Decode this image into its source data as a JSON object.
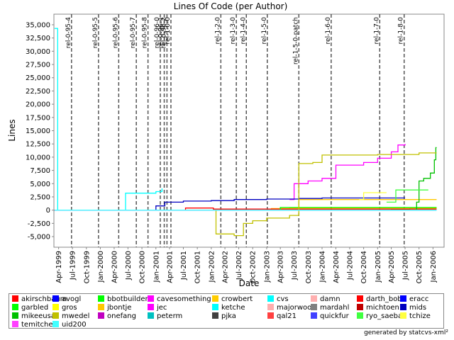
{
  "chart_data": {
    "type": "line",
    "title": "Lines Of Code (per Author)",
    "xlabel": "Date",
    "ylabel": "Lines",
    "ylim": [
      -7000,
      37000
    ],
    "xlim": [
      "1999-03-01",
      "2006-03-15"
    ],
    "yticks": [
      -5000,
      -2500,
      0,
      2500,
      5000,
      7500,
      10000,
      12500,
      15000,
      17500,
      20000,
      22500,
      25000,
      27500,
      30000,
      32500,
      35000
    ],
    "ytick_labels": [
      "-5,000",
      "-2,500",
      "0",
      "2,500",
      "5,000",
      "7,500",
      "10,000",
      "12,500",
      "15,000",
      "17,500",
      "20,000",
      "22,500",
      "25,000",
      "27,500",
      "30,000",
      "32,500",
      "35,000"
    ],
    "xticks": [
      {
        "label": "Apr-1999",
        "date": "1999-04-01"
      },
      {
        "label": "Jul-1999",
        "date": "1999-07-01"
      },
      {
        "label": "Oct-1999",
        "date": "1999-10-01"
      },
      {
        "label": "Jan-2000",
        "date": "2000-01-01"
      },
      {
        "label": "Apr-2000",
        "date": "2000-04-01"
      },
      {
        "label": "Jul-2000",
        "date": "2000-07-01"
      },
      {
        "label": "Oct-2000",
        "date": "2000-10-01"
      },
      {
        "label": "Jan-2001",
        "date": "2001-01-01"
      },
      {
        "label": "Apr-2001",
        "date": "2001-04-01"
      },
      {
        "label": "Jul-2001",
        "date": "2001-07-01"
      },
      {
        "label": "Oct-2001",
        "date": "2001-10-01"
      },
      {
        "label": "Jan-2002",
        "date": "2002-01-01"
      },
      {
        "label": "Apr-2002",
        "date": "2002-04-01"
      },
      {
        "label": "Jul-2002",
        "date": "2002-07-01"
      },
      {
        "label": "Oct-2002",
        "date": "2002-10-01"
      },
      {
        "label": "Jan-2003",
        "date": "2003-01-01"
      },
      {
        "label": "Apr-2003",
        "date": "2003-04-01"
      },
      {
        "label": "Jul-2003",
        "date": "2003-07-01"
      },
      {
        "label": "Oct-2003",
        "date": "2003-10-01"
      },
      {
        "label": "Jan-2004",
        "date": "2004-01-01"
      },
      {
        "label": "Apr-2004",
        "date": "2004-04-01"
      },
      {
        "label": "Jul-2004",
        "date": "2004-07-01"
      },
      {
        "label": "Oct-2004",
        "date": "2004-10-01"
      },
      {
        "label": "Jan-2005",
        "date": "2005-01-01"
      },
      {
        "label": "Apr-2005",
        "date": "2005-04-01"
      },
      {
        "label": "Jul-2005",
        "date": "2005-07-01"
      },
      {
        "label": "Oct-2005",
        "date": "2005-10-01"
      },
      {
        "label": "Jan-2006",
        "date": "2006-01-01"
      }
    ],
    "markers": [
      {
        "label": "rel-0-95-4",
        "date": "1999-06-25"
      },
      {
        "label": "rel-0-95-5",
        "date": "1999-12-20"
      },
      {
        "label": "rel-0-95-6",
        "date": "2000-05-01"
      },
      {
        "label": "rel-0-95-7",
        "date": "2000-08-25"
      },
      {
        "label": "rel-0-95-8",
        "date": "2000-11-10"
      },
      {
        "label": "rel-0-96-0",
        "date": "2001-01-30"
      },
      {
        "label": "rel-0-96-1",
        "date": "2001-02-25"
      },
      {
        "label": "rel-0-96-2",
        "date": "2001-03-15"
      },
      {
        "label": "rel-1-0-0",
        "date": "2001-04-10"
      },
      {
        "label": "rel-1-2-0",
        "date": "2002-03-05"
      },
      {
        "label": "rel-1-3-0",
        "date": "2002-06-15"
      },
      {
        "label": "rel-1-4-0",
        "date": "2002-08-20"
      },
      {
        "label": "rel-1-5-0",
        "date": "2003-01-05"
      },
      {
        "label": "rel-1-5-0-patch",
        "date": "2003-08-01"
      },
      {
        "label": "rel-1-6-0",
        "date": "2004-03-01"
      },
      {
        "label": "rel-1-7-0",
        "date": "2005-01-15"
      },
      {
        "label": "rel-1-8-0",
        "date": "2005-06-25"
      }
    ],
    "series": [
      {
        "name": "akirschbaum",
        "color": "#ff0000",
        "points": [
          [
            "1999-03-05",
            0
          ],
          [
            "2006-01-25",
            0
          ]
        ]
      },
      {
        "name": "avogl",
        "color": "#0000ff",
        "points": [
          [
            "1999-03-05",
            0
          ],
          [
            "2006-01-25",
            0
          ]
        ]
      },
      {
        "name": "bbotbuilder",
        "color": "#00ff00",
        "points": [
          [
            "2005-03-01",
            0
          ],
          [
            "2005-04-01",
            150
          ],
          [
            "2005-08-01",
            400
          ],
          [
            "2006-01-25",
            400
          ]
        ]
      },
      {
        "name": "cavesomething",
        "color": "#ff00ff",
        "points": [
          [
            "1999-03-05",
            0
          ],
          [
            "2006-01-25",
            0
          ]
        ]
      },
      {
        "name": "crowbert",
        "color": "#ffcc00",
        "points": [
          [
            "2002-10-01",
            0
          ],
          [
            "2003-02-01",
            300
          ],
          [
            "2003-06-01",
            400
          ],
          [
            "2006-01-25",
            400
          ]
        ]
      },
      {
        "name": "cvs",
        "color": "#00ffff",
        "points": [
          [
            "1999-03-05",
            34300
          ],
          [
            "1999-03-25",
            34300
          ],
          [
            "1999-03-26",
            0
          ],
          [
            "2006-01-25",
            0
          ]
        ]
      },
      {
        "name": "damn",
        "color": "#ffafaf",
        "points": [
          [
            "1999-03-05",
            0
          ],
          [
            "2006-01-25",
            0
          ]
        ]
      },
      {
        "name": "darth_bob",
        "color": "#ff0000",
        "points": [
          [
            "2001-07-01",
            0
          ],
          [
            "2001-07-15",
            400
          ],
          [
            "2002-01-01",
            400
          ],
          [
            "2002-01-15",
            200
          ],
          [
            "2006-01-25",
            200
          ]
        ]
      },
      {
        "name": "eracc",
        "color": "#0000ff",
        "points": [
          [
            "1999-03-05",
            0
          ],
          [
            "2006-01-25",
            0
          ]
        ]
      },
      {
        "name": "garbled",
        "color": "#00ff00",
        "points": [
          [
            "2002-10-01",
            0
          ],
          [
            "2003-04-01",
            500
          ],
          [
            "2006-01-25",
            500
          ]
        ]
      },
      {
        "name": "gros",
        "color": "#ffff00",
        "points": [
          [
            "1999-03-05",
            0
          ],
          [
            "2006-01-25",
            0
          ]
        ]
      },
      {
        "name": "jbontje",
        "color": "#ffc800",
        "points": [
          [
            "2003-06-01",
            0
          ],
          [
            "2003-08-01",
            2000
          ],
          [
            "2006-01-25",
            2000
          ]
        ]
      },
      {
        "name": "jec",
        "color": "#ff00ff",
        "points": [
          [
            "2003-06-01",
            2000
          ],
          [
            "2003-07-01",
            5000
          ],
          [
            "2003-10-01",
            5500
          ],
          [
            "2004-01-01",
            6000
          ],
          [
            "2004-04-01",
            8500
          ],
          [
            "2004-10-01",
            9000
          ],
          [
            "2005-01-01",
            9800
          ],
          [
            "2005-04-01",
            11000
          ],
          [
            "2005-05-15",
            12300
          ],
          [
            "2005-07-01",
            12500
          ]
        ]
      },
      {
        "name": "ketche",
        "color": "#00ffff",
        "points": [
          [
            "2000-06-01",
            0
          ],
          [
            "2000-06-15",
            3200
          ],
          [
            "2000-12-01",
            3200
          ],
          [
            "2001-01-01",
            3500
          ],
          [
            "2001-02-10",
            4000
          ],
          [
            "2001-02-11",
            3500
          ]
        ]
      },
      {
        "name": "majorwoo",
        "color": "#ffafaf",
        "points": [
          [
            "1999-03-05",
            0
          ],
          [
            "2006-01-25",
            0
          ]
        ]
      },
      {
        "name": "mardahl",
        "color": "#808080",
        "points": [
          [
            "1999-03-05",
            0
          ],
          [
            "2006-01-25",
            0
          ]
        ]
      },
      {
        "name": "michtoen",
        "color": "#c00000",
        "points": [
          [
            "1999-03-05",
            0
          ],
          [
            "2006-01-25",
            0
          ]
        ]
      },
      {
        "name": "mids",
        "color": "#0000c0",
        "points": [
          [
            "2000-12-01",
            0
          ],
          [
            "2001-01-01",
            800
          ],
          [
            "2001-03-01",
            1500
          ],
          [
            "2001-07-01",
            1700
          ],
          [
            "2002-01-01",
            1800
          ],
          [
            "2002-06-01",
            2000
          ],
          [
            "2003-01-01",
            2100
          ],
          [
            "2003-08-01",
            2200
          ],
          [
            "2004-01-01",
            2300
          ],
          [
            "2005-07-01",
            2300
          ]
        ]
      },
      {
        "name": "mikeeusa",
        "color": "#00c000",
        "points": [
          [
            "2005-08-01",
            0
          ],
          [
            "2005-09-15",
            1500
          ],
          [
            "2005-10-01",
            5500
          ],
          [
            "2005-11-01",
            6000
          ],
          [
            "2005-12-15",
            7000
          ],
          [
            "2006-01-10",
            9500
          ],
          [
            "2006-01-20",
            11800
          ],
          [
            "2006-01-25",
            11800
          ]
        ]
      },
      {
        "name": "mwedel",
        "color": "#c0c000",
        "points": [
          [
            "2002-01-01",
            0
          ],
          [
            "2002-02-01",
            -4500
          ],
          [
            "2002-06-01",
            -4800
          ],
          [
            "2002-08-01",
            -2500
          ],
          [
            "2002-10-01",
            -2000
          ],
          [
            "2003-01-01",
            -1500
          ],
          [
            "2003-06-01",
            -1000
          ],
          [
            "2003-07-20",
            -1000
          ],
          [
            "2003-08-01",
            8800
          ],
          [
            "2003-11-01",
            9000
          ],
          [
            "2004-01-01",
            10400
          ],
          [
            "2005-01-01",
            10500
          ],
          [
            "2005-10-01",
            10800
          ],
          [
            "2006-01-25",
            10800
          ]
        ]
      },
      {
        "name": "onefang",
        "color": "#c000c0",
        "points": [
          [
            "1999-03-05",
            0
          ],
          [
            "2006-01-25",
            0
          ]
        ]
      },
      {
        "name": "peterm",
        "color": "#00c0c0",
        "points": [
          [
            "1999-03-05",
            0
          ],
          [
            "2006-01-25",
            0
          ]
        ]
      },
      {
        "name": "pjka",
        "color": "#404040",
        "points": [
          [
            "1999-03-05",
            0
          ],
          [
            "2006-01-25",
            0
          ]
        ]
      },
      {
        "name": "qal21",
        "color": "#ff4040",
        "points": [
          [
            "1999-03-05",
            0
          ],
          [
            "2006-01-25",
            0
          ]
        ]
      },
      {
        "name": "quickfur",
        "color": "#4040ff",
        "points": [
          [
            "1999-03-05",
            0
          ],
          [
            "2006-01-25",
            0
          ]
        ]
      },
      {
        "name": "ryo_saeba",
        "color": "#40ff40",
        "points": [
          [
            "2005-03-01",
            1500
          ],
          [
            "2005-05-01",
            3800
          ],
          [
            "2005-12-01",
            3800
          ]
        ]
      },
      {
        "name": "tchize",
        "color": "#ffff40",
        "points": [
          [
            "2004-09-01",
            2000
          ],
          [
            "2004-10-01",
            3300
          ],
          [
            "2005-03-01",
            3300
          ]
        ]
      },
      {
        "name": "temitchell",
        "color": "#ff40ff",
        "points": [
          [
            "1999-03-05",
            0
          ],
          [
            "2006-01-25",
            0
          ]
        ]
      },
      {
        "name": "uid200",
        "color": "#40ffff",
        "points": [
          [
            "1999-03-05",
            0
          ],
          [
            "2006-01-25",
            0
          ]
        ]
      }
    ]
  },
  "footer": "generated by statcvs-xml²"
}
